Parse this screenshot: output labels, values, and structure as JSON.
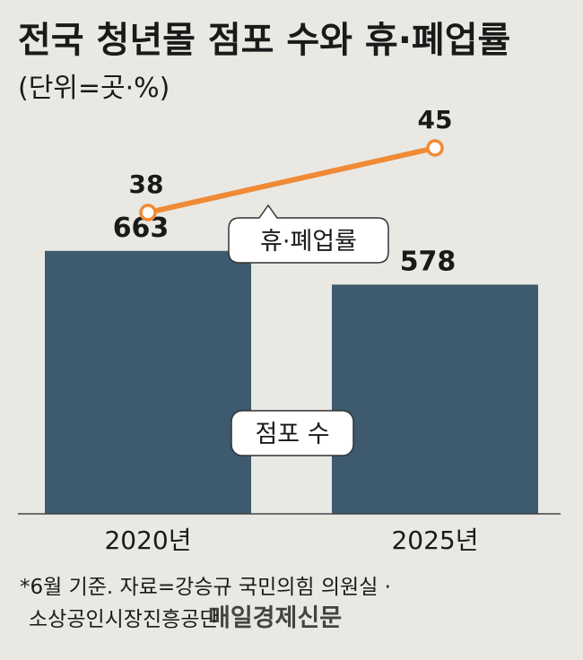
{
  "chart_data": {
    "type": "bar+line",
    "title": "전국 청년몰 점포 수와 휴·폐업률",
    "subtitle": "(단위=곳·%)",
    "categories": [
      "2020년",
      "2025년"
    ],
    "series": [
      {
        "name": "점포 수",
        "type": "bar",
        "values": [
          663,
          578
        ],
        "color": "#3d5a6e"
      },
      {
        "name": "휴·폐업률",
        "type": "line",
        "values": [
          38,
          45
        ],
        "color": "#f08a35"
      }
    ],
    "bar_labels": [
      "663",
      "578"
    ],
    "line_labels": [
      "38",
      "45"
    ],
    "bar_ylim": [
      0,
      900
    ],
    "line_ylim": [
      20,
      55
    ],
    "grid": false
  },
  "footnote": {
    "line1": "*6월 기준. 자료=강승규 국민의힘 의원실 ·",
    "line2": "소상공인시장진흥공단"
  },
  "watermark": "매일경제신문",
  "colors": {
    "background": "#e9e8e3",
    "bar": "#3d5a6e",
    "line": "#f08a35",
    "text": "#1a1a1a",
    "axis": "#444444"
  }
}
